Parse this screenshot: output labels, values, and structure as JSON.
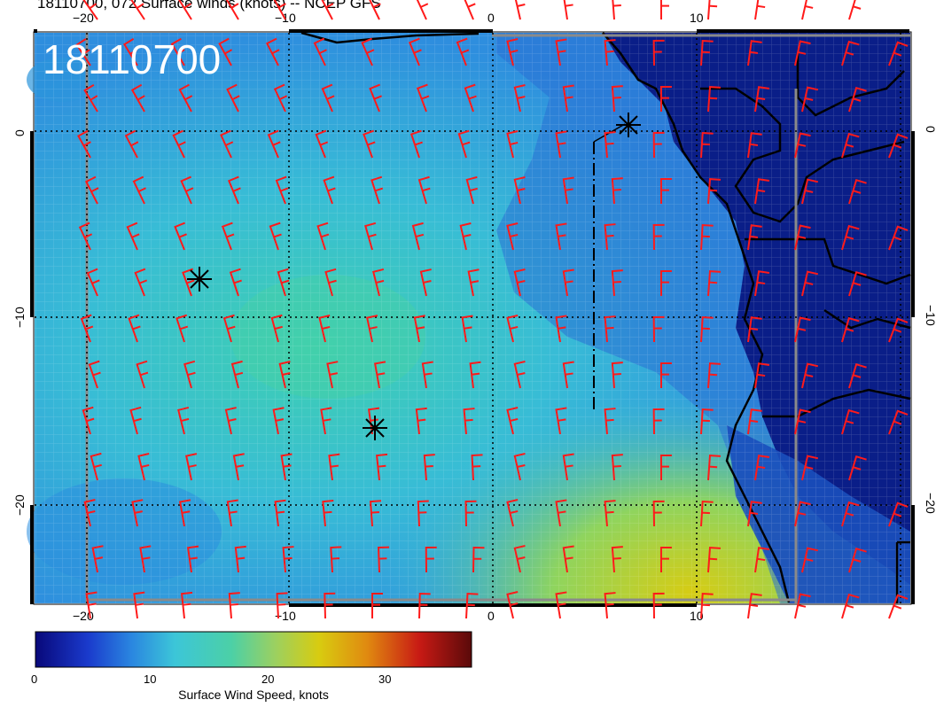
{
  "title": "18110700, 072 Surface winds (knots) -- NCEP GFS",
  "stamp": "18110700",
  "axes": {
    "x_ticks": [
      "−20",
      "−10",
      "0",
      "10"
    ],
    "y_ticks": [
      "0",
      "−10",
      "−20"
    ]
  },
  "colorbar": {
    "title": "Surface Wind Speed, knots",
    "ticks": [
      "0",
      "10",
      "20",
      "30"
    ],
    "range": [
      0,
      37
    ],
    "colors": [
      "#08087a",
      "#1a3acc",
      "#2a86e0",
      "#3cc6d8",
      "#4cd0a6",
      "#9cd060",
      "#d8cc10",
      "#e08a10",
      "#c81a14",
      "#5a0a0a"
    ]
  },
  "markers": [
    {
      "name": "storm-marker-1",
      "label": "asterisk"
    },
    {
      "name": "storm-marker-2",
      "label": "asterisk"
    },
    {
      "name": "storm-marker-3",
      "label": "asterisk"
    }
  ],
  "colors": {
    "barb": "#ff1a1a",
    "land": "#0a1e88",
    "grid_lines": "#000000"
  }
}
